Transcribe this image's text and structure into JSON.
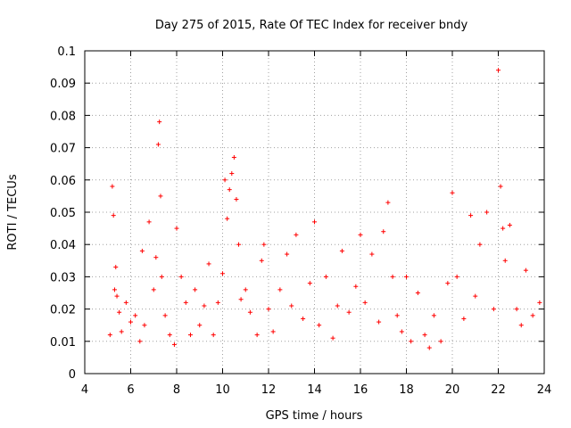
{
  "chart_data": {
    "type": "scatter",
    "title": "Day 275 of 2015, Rate Of TEC Index for receiver bndy",
    "xlabel": "GPS time / hours",
    "ylabel": "ROTI / TECUs",
    "xlim": [
      4,
      24
    ],
    "ylim": [
      0,
      0.1
    ],
    "x_ticks": [
      4,
      6,
      8,
      10,
      12,
      14,
      16,
      18,
      20,
      22,
      24
    ],
    "y_ticks": [
      0,
      0.01,
      0.02,
      0.03,
      0.04,
      0.05,
      0.06,
      0.07,
      0.08,
      0.09,
      0.1
    ],
    "x_tick_labels": [
      "4",
      "6",
      "8",
      "10",
      "12",
      "14",
      "16",
      "18",
      "20",
      "22",
      "24"
    ],
    "y_tick_labels": [
      "0",
      "0.01",
      "0.02",
      "0.03",
      "0.04",
      "0.05",
      "0.06",
      "0.07",
      "0.08",
      "0.09",
      "0.1"
    ],
    "grid": true,
    "marker": "+",
    "color": "#ff0000",
    "series": [
      {
        "name": "ROTI",
        "x": [
          5.1,
          5.2,
          5.25,
          5.3,
          5.35,
          5.4,
          5.5,
          5.6,
          5.8,
          6.0,
          6.2,
          6.4,
          6.5,
          6.6,
          6.8,
          7.0,
          7.1,
          7.2,
          7.25,
          7.3,
          7.35,
          7.5,
          7.7,
          7.9,
          8.0,
          8.2,
          8.4,
          8.6,
          8.8,
          9.0,
          9.2,
          9.4,
          9.6,
          9.8,
          10.0,
          10.1,
          10.2,
          10.3,
          10.4,
          10.5,
          10.6,
          10.7,
          10.8,
          11.0,
          11.2,
          11.5,
          11.7,
          11.8,
          12.0,
          12.2,
          12.5,
          12.8,
          13.0,
          13.2,
          13.5,
          13.8,
          14.0,
          14.2,
          14.5,
          14.8,
          15.0,
          15.2,
          15.5,
          15.8,
          16.0,
          16.2,
          16.5,
          16.8,
          17.0,
          17.2,
          17.4,
          17.6,
          17.8,
          18.0,
          18.2,
          18.5,
          18.8,
          19.0,
          19.2,
          19.5,
          19.8,
          20.0,
          20.2,
          20.5,
          20.8,
          21.0,
          21.2,
          21.5,
          21.8,
          22.0,
          22.1,
          22.2,
          22.3,
          22.5,
          22.8,
          23.0,
          23.2,
          23.5,
          23.8
        ],
        "y": [
          0.012,
          0.058,
          0.049,
          0.026,
          0.033,
          0.024,
          0.019,
          0.013,
          0.022,
          0.016,
          0.018,
          0.01,
          0.038,
          0.015,
          0.047,
          0.026,
          0.036,
          0.071,
          0.078,
          0.055,
          0.03,
          0.018,
          0.012,
          0.009,
          0.045,
          0.03,
          0.022,
          0.012,
          0.026,
          0.015,
          0.021,
          0.034,
          0.012,
          0.022,
          0.031,
          0.06,
          0.048,
          0.057,
          0.062,
          0.067,
          0.054,
          0.04,
          0.023,
          0.026,
          0.019,
          0.012,
          0.035,
          0.04,
          0.02,
          0.013,
          0.026,
          0.037,
          0.021,
          0.043,
          0.017,
          0.028,
          0.047,
          0.015,
          0.03,
          0.011,
          0.021,
          0.038,
          0.019,
          0.027,
          0.043,
          0.022,
          0.037,
          0.016,
          0.044,
          0.053,
          0.03,
          0.018,
          0.013,
          0.03,
          0.01,
          0.025,
          0.012,
          0.008,
          0.018,
          0.01,
          0.028,
          0.056,
          0.03,
          0.017,
          0.049,
          0.024,
          0.04,
          0.05,
          0.02,
          0.094,
          0.058,
          0.045,
          0.035,
          0.046,
          0.02,
          0.015,
          0.032,
          0.018,
          0.022
        ]
      }
    ]
  }
}
